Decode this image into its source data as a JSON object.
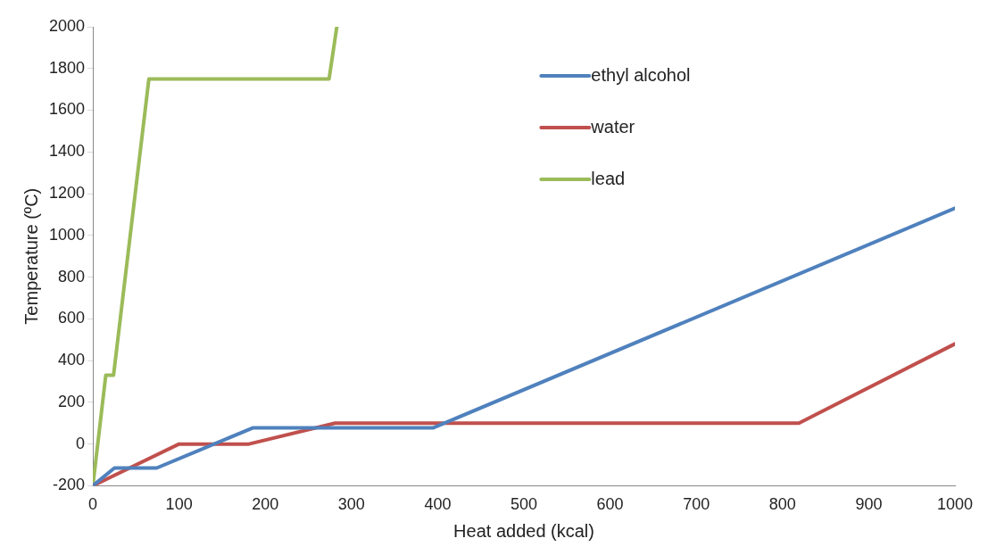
{
  "chart_data": {
    "type": "line",
    "xlabel": "Heat added (kcal)",
    "ylabel": "Temperature (ºC)",
    "xlim": [
      0,
      1000
    ],
    "xticks": [
      0,
      100,
      200,
      300,
      400,
      500,
      600,
      700,
      800,
      900,
      1000
    ],
    "ylim": [
      -200,
      2000
    ],
    "yticks": [
      -200,
      0,
      200,
      400,
      600,
      800,
      1000,
      1200,
      1400,
      1600,
      1800,
      2000
    ],
    "grid": false,
    "legend": "top right",
    "marker": "none",
    "line_style": "solid",
    "series": [
      {
        "name": "ethyl alcohol",
        "color": "#4f81bd",
        "x": [
          0,
          25,
          74,
          186,
          395,
          1000
        ],
        "values": [
          -200,
          -115,
          -115,
          78,
          78,
          1130
        ]
      },
      {
        "name": "water",
        "color": "#c0504d",
        "x": [
          0,
          100,
          181,
          281,
          819,
          1000
        ],
        "values": [
          -200,
          0,
          0,
          100,
          100,
          480
        ]
      },
      {
        "name": "lead",
        "color": "#9bbb59",
        "x": [
          0,
          15,
          24,
          65,
          274,
          283
        ],
        "values": [
          -200,
          330,
          330,
          1750,
          1750,
          2000
        ]
      }
    ]
  }
}
